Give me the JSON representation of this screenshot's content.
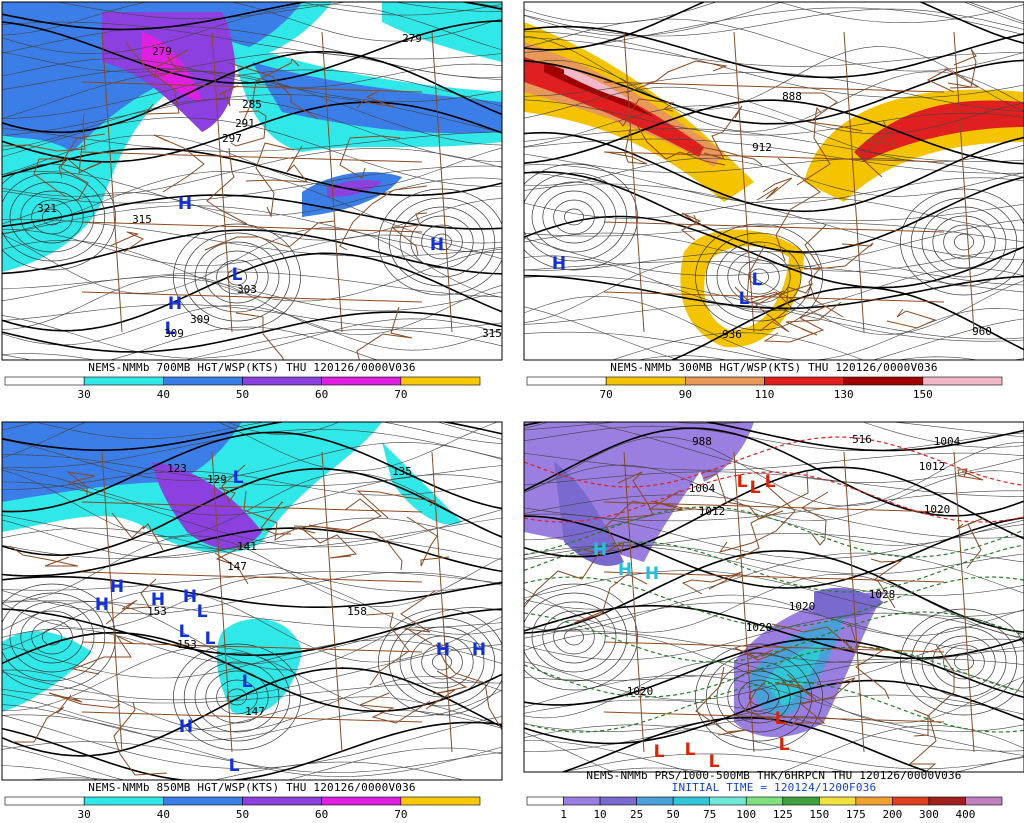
{
  "panels": [
    {
      "caption": "NEMS-NMMb 700MB HGT/WSP(KTS) THU 120126/0000V036",
      "colorbar": {
        "labels": [
          "30",
          "40",
          "50",
          "60",
          "70"
        ],
        "colors": [
          "#ffffff",
          "#30e8e8",
          "#3c7ee8",
          "#8c40e0",
          "#e020e0",
          "#f8c800"
        ]
      },
      "map_labels": [
        {
          "text": "279",
          "kind": "num"
        },
        {
          "text": "279",
          "kind": "num"
        },
        {
          "text": "285",
          "kind": "num"
        },
        {
          "text": "291",
          "kind": "num"
        },
        {
          "text": "297",
          "kind": "num"
        },
        {
          "text": "321",
          "kind": "num"
        },
        {
          "text": "315",
          "kind": "num"
        },
        {
          "text": "H",
          "kind": "blue"
        },
        {
          "text": "H",
          "kind": "blue"
        },
        {
          "text": "L",
          "kind": "blue"
        },
        {
          "text": "303",
          "kind": "num"
        },
        {
          "text": "H",
          "kind": "blue"
        },
        {
          "text": "L",
          "kind": "blue"
        },
        {
          "text": "309",
          "kind": "num"
        },
        {
          "text": "309",
          "kind": "num"
        },
        {
          "text": "315",
          "kind": "num"
        }
      ]
    },
    {
      "caption": "NEMS-NMMb 300MB HGT/WSP(KTS) THU 120126/0000V036",
      "colorbar": {
        "labels": [
          "70",
          "90",
          "110",
          "130",
          "150"
        ],
        "colors": [
          "#ffffff",
          "#f4c400",
          "#e89858",
          "#e02020",
          "#a00000",
          "#f0b8c8"
        ]
      },
      "map_labels": [
        {
          "text": "888",
          "kind": "num"
        },
        {
          "text": "912",
          "kind": "num"
        },
        {
          "text": "H",
          "kind": "blue"
        },
        {
          "text": "L",
          "kind": "blue"
        },
        {
          "text": "L",
          "kind": "blue"
        },
        {
          "text": "936",
          "kind": "num"
        },
        {
          "text": "960",
          "kind": "num"
        }
      ]
    },
    {
      "caption": "NEMS-NMMb 850MB HGT/WSP(KTS) THU 120126/0000V036",
      "colorbar": {
        "labels": [
          "30",
          "40",
          "50",
          "60",
          "70"
        ],
        "colors": [
          "#ffffff",
          "#30e8e8",
          "#3c7ee8",
          "#8c40e0",
          "#e020e0",
          "#f8c800"
        ]
      },
      "map_labels": [
        {
          "text": "123",
          "kind": "num"
        },
        {
          "text": "129",
          "kind": "num"
        },
        {
          "text": "L",
          "kind": "blue"
        },
        {
          "text": "141",
          "kind": "num"
        },
        {
          "text": "147",
          "kind": "num"
        },
        {
          "text": "135",
          "kind": "num"
        },
        {
          "text": "H",
          "kind": "blue"
        },
        {
          "text": "H",
          "kind": "blue"
        },
        {
          "text": "H",
          "kind": "blue"
        },
        {
          "text": "H",
          "kind": "blue"
        },
        {
          "text": "L",
          "kind": "blue"
        },
        {
          "text": "L",
          "kind": "blue"
        },
        {
          "text": "L",
          "kind": "blue"
        },
        {
          "text": "153",
          "kind": "num"
        },
        {
          "text": "153",
          "kind": "num"
        },
        {
          "text": "158",
          "kind": "num"
        },
        {
          "text": "H",
          "kind": "blue"
        },
        {
          "text": "H",
          "kind": "blue"
        },
        {
          "text": "L",
          "kind": "blue"
        },
        {
          "text": "147",
          "kind": "num"
        },
        {
          "text": "H",
          "kind": "blue"
        },
        {
          "text": "L",
          "kind": "blue"
        }
      ]
    },
    {
      "caption": "NEMS-NMMb PRS/1000-500MB THK/6HRPCN THU 120126/0000V036",
      "subcaption": "INITIAL TIME = 120124/1200F036",
      "colorbar": {
        "labels": [
          "1",
          "10",
          "25",
          "50",
          "75",
          "100",
          "125",
          "150",
          "175",
          "200",
          "300",
          "400"
        ],
        "colors": [
          "#ffffff",
          "#9a7ee0",
          "#7a6ad0",
          "#4aa0d8",
          "#30c8d8",
          "#70e8d8",
          "#80e080",
          "#40a040",
          "#f0e040",
          "#f0a030",
          "#e04020",
          "#a02020",
          "#c080c0"
        ]
      },
      "map_labels": [
        {
          "text": "988",
          "kind": "num"
        },
        {
          "text": "516",
          "kind": "rednum"
        },
        {
          "text": "1004",
          "kind": "num"
        },
        {
          "text": "1012",
          "kind": "num"
        },
        {
          "text": "1020",
          "kind": "num"
        },
        {
          "text": "1004",
          "kind": "num"
        },
        {
          "text": "1012",
          "kind": "num"
        },
        {
          "text": "L",
          "kind": "red"
        },
        {
          "text": "L",
          "kind": "red"
        },
        {
          "text": "L",
          "kind": "red"
        },
        {
          "text": "H",
          "kind": "cyan"
        },
        {
          "text": "H",
          "kind": "cyan"
        },
        {
          "text": "H",
          "kind": "cyan"
        },
        {
          "text": "1020",
          "kind": "num"
        },
        {
          "text": "1020",
          "kind": "num"
        },
        {
          "text": "1020",
          "kind": "num"
        },
        {
          "text": "1028",
          "kind": "num"
        },
        {
          "text": "L",
          "kind": "red"
        },
        {
          "text": "L",
          "kind": "red"
        },
        {
          "text": "L",
          "kind": "red"
        },
        {
          "text": "L",
          "kind": "red"
        },
        {
          "text": "L",
          "kind": "red"
        }
      ]
    }
  ]
}
